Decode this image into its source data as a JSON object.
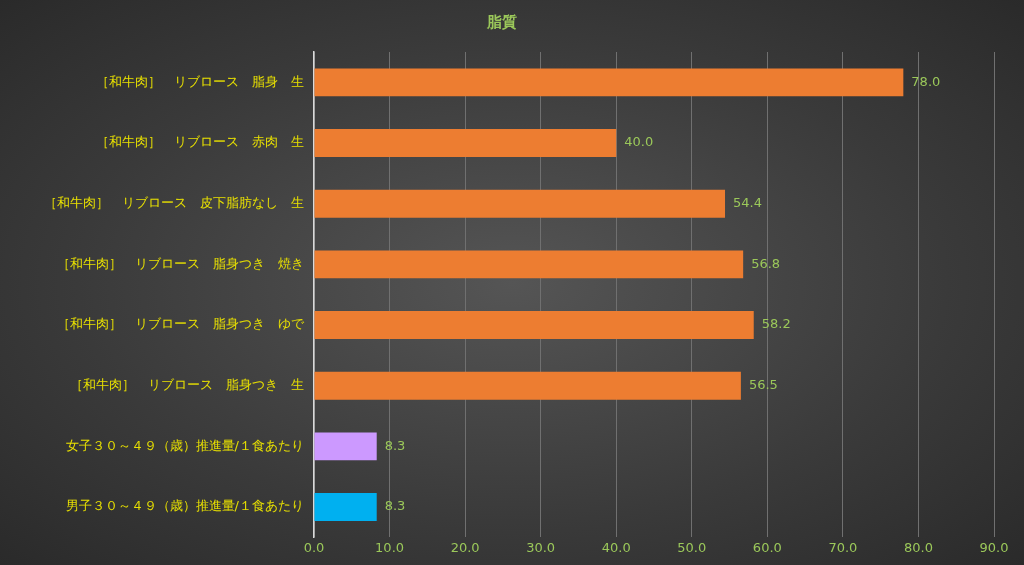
{
  "chart_data": {
    "type": "bar",
    "orientation": "horizontal",
    "title": "脂質",
    "categories": [
      "［和牛肉］　リブロース　脂身　生",
      "［和牛肉］　リブロース　赤肉　生",
      "［和牛肉］　リブロース　皮下脂肪なし　生",
      "［和牛肉］　リブロース　脂身つき　焼き",
      "［和牛肉］　リブロース　脂身つき　ゆで",
      "［和牛肉］　リブロース　脂身つき　生",
      "女子３０～４９（歳）推進量/１食あたり",
      "男子３０～４９（歳）推進量/１食あたり"
    ],
    "values": [
      78.0,
      40.0,
      54.4,
      56.8,
      58.2,
      56.5,
      8.3,
      8.3
    ],
    "value_labels": [
      "78.0",
      "40.0",
      "54.4",
      "56.8",
      "58.2",
      "56.5",
      "8.3",
      "8.3"
    ],
    "colors": [
      "#ed7d31",
      "#ed7d31",
      "#ed7d31",
      "#ed7d31",
      "#ed7d31",
      "#ed7d31",
      "#cc99ff",
      "#00b0f0"
    ],
    "xlim": [
      0,
      90
    ],
    "xticks": [
      {
        "value": 0,
        "label": "0.0"
      },
      {
        "value": 10,
        "label": "10.0"
      },
      {
        "value": 20,
        "label": "20.0"
      },
      {
        "value": 30,
        "label": "30.0"
      },
      {
        "value": 40,
        "label": "40.0"
      },
      {
        "value": 50,
        "label": "50.0"
      },
      {
        "value": 60,
        "label": "60.0"
      },
      {
        "value": 70,
        "label": "70.0"
      },
      {
        "value": 80,
        "label": "80.0"
      },
      {
        "value": 90,
        "label": "90.0"
      }
    ],
    "grid": "x",
    "legend": false
  }
}
